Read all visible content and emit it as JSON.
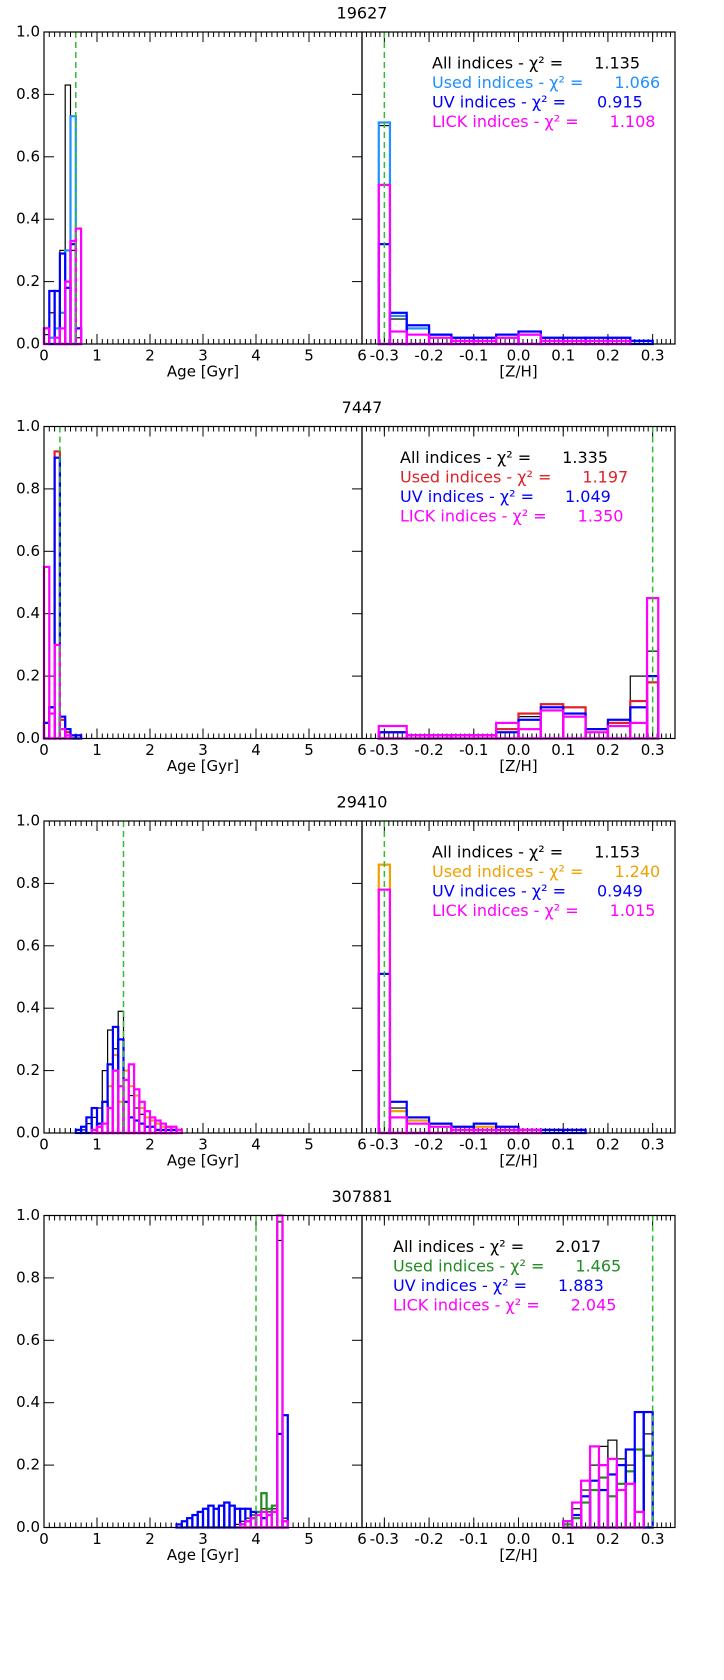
{
  "chart_data": [
    {
      "type": "histogram",
      "title": "19627",
      "xlabel": "Age [Gyr]",
      "xlim": [
        0,
        6
      ],
      "xticks": [
        0,
        1,
        2,
        3,
        4,
        5,
        6
      ],
      "ylim": [
        0,
        1
      ],
      "yticks": [
        {
          "value": 0,
          "label": "0.0"
        },
        0.2,
        0.4,
        0.6,
        0.8,
        {
          "value": 1,
          "label": "1.0"
        }
      ],
      "ref_line": 0.6,
      "bins": [
        0,
        0.1,
        0.2,
        0.3,
        0.4,
        0.5,
        0.6,
        0.7,
        0.8
      ],
      "series": [
        {
          "color": "#000000",
          "values": [
            0.03,
            0.1,
            0.17,
            0.3,
            0.83,
            0.3,
            0.02,
            0
          ]
        },
        {
          "color": "#1e90ff",
          "values": [
            0,
            0.02,
            0.05,
            0.1,
            0.3,
            0.73,
            0.05,
            0
          ]
        },
        {
          "color": "#0000ff",
          "values": [
            0.05,
            0.17,
            0.17,
            0.29,
            0.18,
            0.32,
            0.05,
            0
          ]
        },
        {
          "color": "#ff00ff",
          "values": [
            0.05,
            0,
            0.02,
            0.05,
            0.2,
            0.33,
            0.37,
            0
          ]
        }
      ]
    },
    {
      "type": "histogram",
      "xlabel": "[Z/H]",
      "xlim": [
        -0.35,
        0.35
      ],
      "xticks": [
        -0.3,
        -0.2,
        -0.1,
        {
          "value": 0,
          "label": "0.0"
        },
        0.1,
        0.2,
        0.3
      ],
      "ylim": [
        0,
        1
      ],
      "ref_line": -0.3,
      "bins": [
        -0.3125,
        -0.2875,
        -0.25,
        -0.2,
        -0.15,
        -0.1,
        -0.05,
        0,
        0.05,
        0.1,
        0.15,
        0.2,
        0.25,
        0.3
      ],
      "series": [
        {
          "name": "All indices - χ² =",
          "chi2": {
            "value": 1.135,
            "label": "1.135"
          },
          "color": "#000000",
          "values": [
            0.7,
            0.08,
            0.05,
            0.03,
            0.02,
            0.02,
            0.02,
            0.03,
            0.02,
            0.02,
            0.02,
            0.02,
            0.01
          ]
        },
        {
          "name": "Used indices - χ² =",
          "chi2": {
            "value": 1.066,
            "label": "1.066"
          },
          "color": "#1e90ff",
          "values": [
            0.71,
            0.09,
            0.05,
            0.03,
            0.02,
            0.02,
            0.02,
            0.03,
            0.02,
            0.02,
            0.02,
            0.02,
            0.01
          ]
        },
        {
          "name": "UV indices - χ² =",
          "chi2": {
            "value": 0.915,
            "label": "0.915"
          },
          "color": "#0000ff",
          "values": [
            0.32,
            0.1,
            0.06,
            0.03,
            0.02,
            0.02,
            0.03,
            0.04,
            0.02,
            0.02,
            0.02,
            0.02,
            0.01
          ]
        },
        {
          "name": "LICK indices - χ² =",
          "chi2": {
            "value": 1.108,
            "label": "1.108"
          },
          "color": "#ff00ff",
          "values": [
            0.51,
            0.04,
            0.03,
            0.02,
            0.01,
            0.01,
            0.02,
            0.03,
            0.01,
            0.01,
            0.01,
            0.01,
            0
          ]
        }
      ]
    },
    {
      "type": "histogram",
      "title": "7447",
      "xlabel": "Age [Gyr]",
      "xlim": [
        0,
        6
      ],
      "xticks": [
        0,
        1,
        2,
        3,
        4,
        5,
        6
      ],
      "ylim": [
        0,
        1
      ],
      "yticks": [
        {
          "value": 0,
          "label": "0.0"
        },
        0.2,
        0.4,
        0.6,
        0.8,
        {
          "value": 1,
          "label": "1.0"
        }
      ],
      "ref_line": 0.3,
      "bins": [
        0,
        0.1,
        0.2,
        0.3,
        0.4,
        0.5,
        0.6,
        0.7,
        0.8
      ],
      "series": [
        {
          "color": "#000000",
          "values": [
            0.05,
            0.1,
            0.92,
            0.06,
            0.02,
            0.01,
            0.01,
            0
          ]
        },
        {
          "color": "#e0202a",
          "values": [
            0.05,
            0.1,
            0.92,
            0.06,
            0.02,
            0.01,
            0.01,
            0
          ]
        },
        {
          "color": "#0000ff",
          "values": [
            0.05,
            0.1,
            0.9,
            0.07,
            0.03,
            0.01,
            0.01,
            0
          ]
        },
        {
          "color": "#ff00ff",
          "values": [
            0.55,
            0.08,
            0.3,
            0.03,
            0.01,
            0,
            0,
            0
          ]
        }
      ]
    },
    {
      "type": "histogram",
      "xlabel": "[Z/H]",
      "xlim": [
        -0.35,
        0.35
      ],
      "xticks": [
        -0.3,
        -0.2,
        -0.1,
        {
          "value": 0,
          "label": "0.0"
        },
        0.1,
        0.2,
        0.3
      ],
      "ylim": [
        0,
        1
      ],
      "ref_line": 0.3,
      "bins": [
        -0.3125,
        -0.25,
        -0.2,
        -0.15,
        -0.1,
        -0.05,
        0,
        0.05,
        0.1,
        0.15,
        0.2,
        0.25,
        0.2875,
        0.3125
      ],
      "series": [
        {
          "name": "All indices - χ² =",
          "chi2": {
            "value": 1.335,
            "label": "1.335"
          },
          "color": "#000000",
          "values": [
            0.02,
            0.01,
            0.01,
            0.01,
            0.01,
            0.03,
            0.07,
            0.1,
            0.07,
            0.03,
            0.06,
            0.2,
            0.28
          ]
        },
        {
          "name": "Used indices - χ² =",
          "chi2": {
            "value": 1.197,
            "label": "1.197"
          },
          "color": "#e0202a",
          "values": [
            0.02,
            0.01,
            0.01,
            0.01,
            0.01,
            0.03,
            0.08,
            0.11,
            0.1,
            0.03,
            0.05,
            0.12,
            0.18
          ]
        },
        {
          "name": "UV indices - χ² =",
          "chi2": {
            "value": 1.049,
            "label": "1.049"
          },
          "color": "#0000ff",
          "values": [
            0.02,
            0.01,
            0.01,
            0.01,
            0.01,
            0.02,
            0.06,
            0.1,
            0.08,
            0.03,
            0.06,
            0.1,
            0.2
          ]
        },
        {
          "name": "LICK indices - χ² =",
          "chi2": {
            "value": 1.35,
            "label": "1.350"
          },
          "color": "#ff00ff",
          "values": [
            0.04,
            0.01,
            0.01,
            0.01,
            0.01,
            0.05,
            0.03,
            0.09,
            0.07,
            0.02,
            0.04,
            0.05,
            0.45
          ]
        }
      ]
    },
    {
      "type": "histogram",
      "title": "29410",
      "xlabel": "Age [Gyr]",
      "xlim": [
        0,
        6
      ],
      "xticks": [
        0,
        1,
        2,
        3,
        4,
        5,
        6
      ],
      "ylim": [
        0,
        1
      ],
      "yticks": [
        {
          "value": 0,
          "label": "0.0"
        },
        0.2,
        0.4,
        0.6,
        0.8,
        {
          "value": 1,
          "label": "1.0"
        }
      ],
      "ref_line": 1.5,
      "bins": [
        0.6,
        0.7,
        0.8,
        0.9,
        1.0,
        1.1,
        1.2,
        1.3,
        1.4,
        1.5,
        1.6,
        1.7,
        1.8,
        1.9,
        2.0,
        2.1,
        2.2,
        2.3,
        2.4,
        2.5,
        2.6
      ],
      "series": [
        {
          "color": "#000000",
          "values": [
            0.01,
            0.01,
            0.03,
            0.05,
            0.08,
            0.2,
            0.33,
            0.27,
            0.39,
            0.2,
            0.12,
            0.08,
            0.06,
            0.05,
            0.04,
            0.03,
            0.02,
            0.02,
            0.01,
            0.01
          ]
        },
        {
          "color": "#f0a000",
          "values": [
            0,
            0,
            0,
            0,
            0.02,
            0.1,
            0.15,
            0.25,
            0.1,
            0.2,
            0.15,
            0.12,
            0.08,
            0.05,
            0.04,
            0.03,
            0.02,
            0.02,
            0.01,
            0.01
          ]
        },
        {
          "color": "#0000ff",
          "values": [
            0.01,
            0.02,
            0.05,
            0.08,
            0.03,
            0.1,
            0.22,
            0.34,
            0.3,
            0.1,
            0.05,
            0.04,
            0.03,
            0.02,
            0.02,
            0.01,
            0.01,
            0.01,
            0.01,
            0
          ]
        },
        {
          "color": "#ff00ff",
          "values": [
            0,
            0,
            0,
            0.01,
            0.02,
            0.03,
            0.08,
            0.2,
            0.15,
            0.17,
            0.22,
            0.14,
            0.1,
            0.07,
            0.05,
            0.04,
            0.03,
            0.02,
            0.02,
            0.01
          ]
        }
      ]
    },
    {
      "type": "histogram",
      "xlabel": "[Z/H]",
      "xlim": [
        -0.35,
        0.35
      ],
      "xticks": [
        -0.3,
        -0.2,
        -0.1,
        {
          "value": 0,
          "label": "0.0"
        },
        0.1,
        0.2,
        0.3
      ],
      "ylim": [
        0,
        1
      ],
      "ref_line": -0.3,
      "bins": [
        -0.3125,
        -0.2875,
        -0.25,
        -0.2,
        -0.15,
        -0.1,
        -0.05,
        0,
        0.05,
        0.1,
        0.15,
        0.2,
        0.25,
        0.3
      ],
      "series": [
        {
          "name": "All indices - χ² =",
          "chi2": {
            "value": 1.153,
            "label": "1.153"
          },
          "color": "#000000",
          "values": [
            0.78,
            0.08,
            0.05,
            0.03,
            0.02,
            0.02,
            0.02,
            0.01,
            0.01,
            0.01,
            0,
            0,
            0
          ]
        },
        {
          "name": "Used indices - χ² =",
          "chi2": {
            "value": 1.24,
            "label": "1.240"
          },
          "color": "#f0a000",
          "values": [
            0.86,
            0.07,
            0.04,
            0.03,
            0.02,
            0.02,
            0.02,
            0.01,
            0.01,
            0.01,
            0,
            0,
            0
          ]
        },
        {
          "name": "UV indices - χ² =",
          "chi2": {
            "value": 0.949,
            "label": "0.949"
          },
          "color": "#0000ff",
          "values": [
            0.51,
            0.1,
            0.05,
            0.03,
            0.02,
            0.03,
            0.02,
            0.01,
            0.01,
            0.01,
            0,
            0,
            0
          ]
        },
        {
          "name": "LICK indices - χ² =",
          "chi2": {
            "value": 1.015,
            "label": "1.015"
          },
          "color": "#ff00ff",
          "values": [
            0.78,
            0.05,
            0.03,
            0.02,
            0.01,
            0.01,
            0.01,
            0.01,
            0,
            0,
            0,
            0,
            0
          ]
        }
      ]
    },
    {
      "type": "histogram",
      "title": "307881",
      "xlabel": "Age [Gyr]",
      "xlim": [
        0,
        6
      ],
      "xticks": [
        0,
        1,
        2,
        3,
        4,
        5,
        6
      ],
      "ylim": [
        0,
        1
      ],
      "yticks": [
        {
          "value": 0,
          "label": "0.0"
        },
        0.2,
        0.4,
        0.6,
        0.8,
        {
          "value": 1,
          "label": "1.0"
        }
      ],
      "ref_line": 4,
      "bins": [
        2.5,
        2.6,
        2.7,
        2.8,
        2.9,
        3.0,
        3.1,
        3.2,
        3.3,
        3.4,
        3.5,
        3.6,
        3.7,
        3.8,
        3.9,
        4.0,
        4.1,
        4.2,
        4.3,
        4.4,
        4.5,
        4.6
      ],
      "series": [
        {
          "color": "#000000",
          "values": [
            0,
            0,
            0,
            0,
            0,
            0,
            0,
            0,
            0,
            0,
            0,
            0.01,
            0.02,
            0.03,
            0.04,
            0.05,
            0.06,
            0.05,
            0.06,
            0.92,
            0.03
          ]
        },
        {
          "color": "#228b22",
          "values": [
            0,
            0,
            0,
            0,
            0,
            0,
            0,
            0,
            0,
            0,
            0,
            0,
            0.01,
            0.02,
            0.03,
            0.05,
            0.11,
            0.06,
            0.07,
            0.98,
            0.02
          ]
        },
        {
          "color": "#0000ff",
          "values": [
            0.01,
            0.02,
            0.03,
            0.04,
            0.05,
            0.06,
            0.07,
            0.06,
            0.07,
            0.08,
            0.07,
            0.06,
            0.06,
            0.06,
            0.05,
            0.04,
            0.03,
            0.04,
            0.05,
            0.3,
            0.36
          ]
        },
        {
          "color": "#ff00ff",
          "values": [
            0,
            0,
            0,
            0,
            0,
            0,
            0,
            0,
            0,
            0,
            0,
            0,
            0.01,
            0.02,
            0.03,
            0.04,
            0.05,
            0.04,
            0.05,
            1.0,
            0.02
          ]
        }
      ]
    },
    {
      "type": "histogram",
      "xlabel": "[Z/H]",
      "xlim": [
        -0.35,
        0.35
      ],
      "xticks": [
        -0.3,
        -0.2,
        -0.1,
        {
          "value": 0,
          "label": "0.0"
        },
        0.1,
        0.2,
        0.3
      ],
      "ylim": [
        0,
        1
      ],
      "ref_line": 0.3,
      "bins": [
        0.1,
        0.12,
        0.14,
        0.16,
        0.18,
        0.2,
        0.22,
        0.24,
        0.26,
        0.28,
        0.3
      ],
      "series": [
        {
          "name": "All indices - χ² =",
          "chi2": {
            "value": 2.017,
            "label": "2.017"
          },
          "color": "#000000",
          "values": [
            0.02,
            0.06,
            0.12,
            0.2,
            0.26,
            0.28,
            0.22,
            0.2,
            0.25,
            0.3
          ]
        },
        {
          "name": "Used indices - χ² =",
          "chi2": {
            "value": 1.465,
            "label": "1.465"
          },
          "color": "#228b22",
          "values": [
            0.01,
            0.03,
            0.08,
            0.12,
            0.16,
            0.1,
            0.14,
            0.18,
            0.25,
            0.23
          ]
        },
        {
          "name": "UV indices - χ² =",
          "chi2": {
            "value": 1.883,
            "label": "1.883"
          },
          "color": "#0000ff",
          "values": [
            0.02,
            0.04,
            0.1,
            0.15,
            0.12,
            0.17,
            0.2,
            0.25,
            0.37,
            0.37
          ]
        },
        {
          "name": "LICK indices - χ² =",
          "chi2": {
            "value": 2.045,
            "label": "2.045"
          },
          "color": "#ff00ff",
          "values": [
            0.02,
            0.08,
            0.15,
            0.26,
            0.2,
            0.22,
            0.12,
            0.14,
            0.05,
            0
          ]
        }
      ]
    }
  ]
}
